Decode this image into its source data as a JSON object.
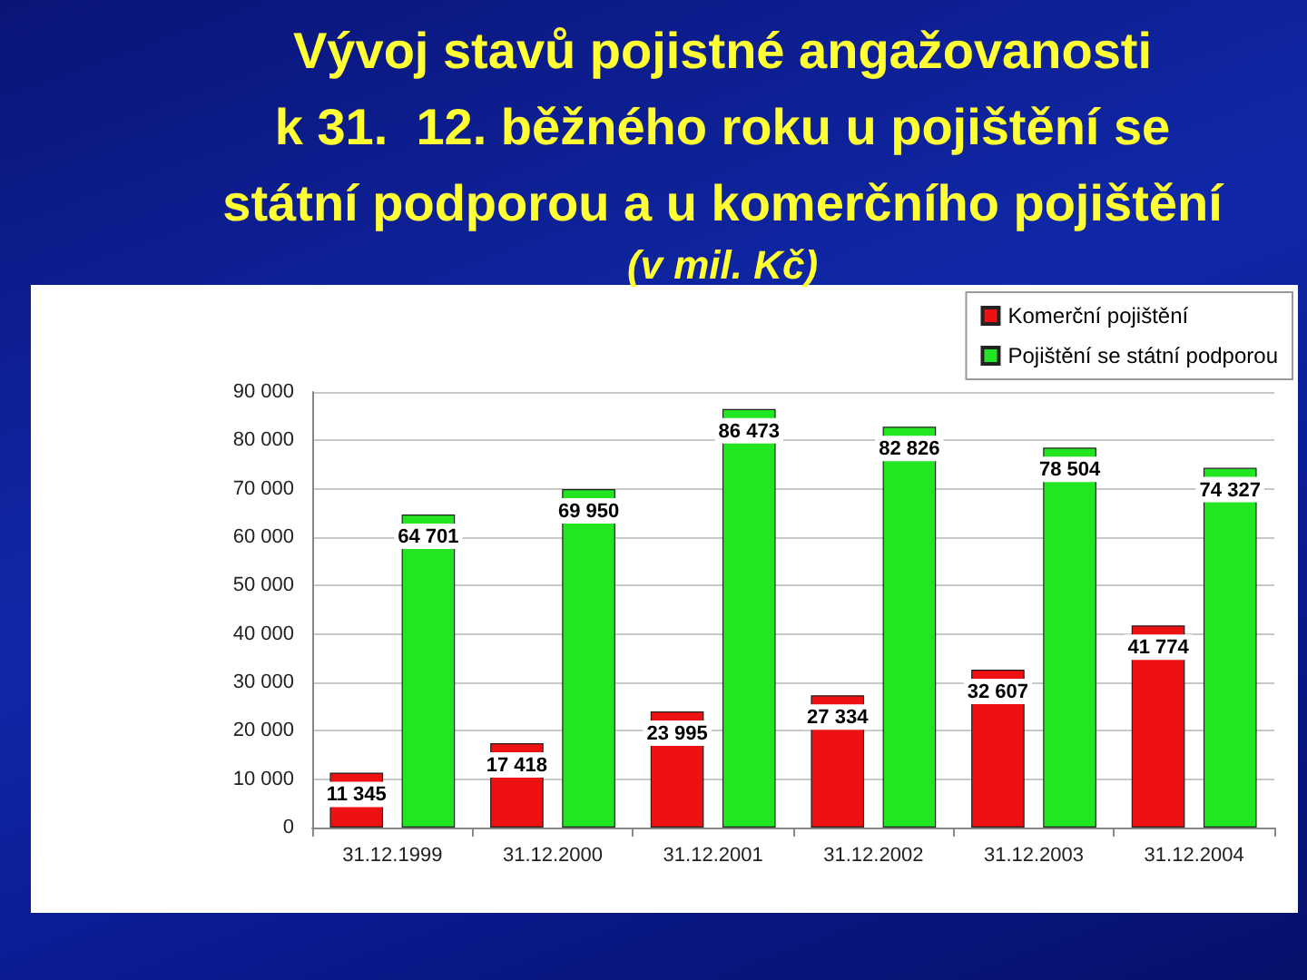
{
  "chart_data": {
    "type": "bar",
    "title": "Vývoj stavů pojistné angažovanosti\nk 31.  12. běžného roku u pojištění se\nstátní podporou a u komerčního pojištění",
    "subtitle": "(v mil. Kč)",
    "categories": [
      "31.12.1999",
      "31.12.2000",
      "31.12.2001",
      "31.12.2002",
      "31.12.2003",
      "31.12.2004"
    ],
    "series": [
      {
        "name": "Komerční pojištění",
        "color": "#ee1111",
        "values": [
          11345,
          17418,
          23995,
          27334,
          32607,
          41774
        ],
        "value_labels": [
          "11 345",
          "17 418",
          "23 995",
          "27 334",
          "32 607",
          "41 774"
        ]
      },
      {
        "name": "Pojištění se státní podporou",
        "color": "#22e622",
        "values": [
          64701,
          69950,
          86473,
          82826,
          78504,
          74327
        ],
        "value_labels": [
          "64 701",
          "69 950",
          "86 473",
          "82 826",
          "78 504",
          "74 327"
        ]
      }
    ],
    "ylim": [
      0,
      90000
    ],
    "yticks": [
      0,
      {
        "value": 10000,
        "label": "10 000"
      },
      {
        "value": 20000,
        "label": "20 000"
      },
      {
        "value": 30000,
        "label": "30 000"
      },
      {
        "value": 40000,
        "label": "40 000"
      },
      {
        "value": 50000,
        "label": "50 000"
      },
      {
        "value": 60000,
        "label": "60 000"
      },
      {
        "value": 70000,
        "label": "70 000"
      },
      {
        "value": 80000,
        "label": "80 000"
      },
      {
        "value": 90000,
        "label": "90 000"
      }
    ],
    "grid": "y",
    "legend": "top right"
  }
}
